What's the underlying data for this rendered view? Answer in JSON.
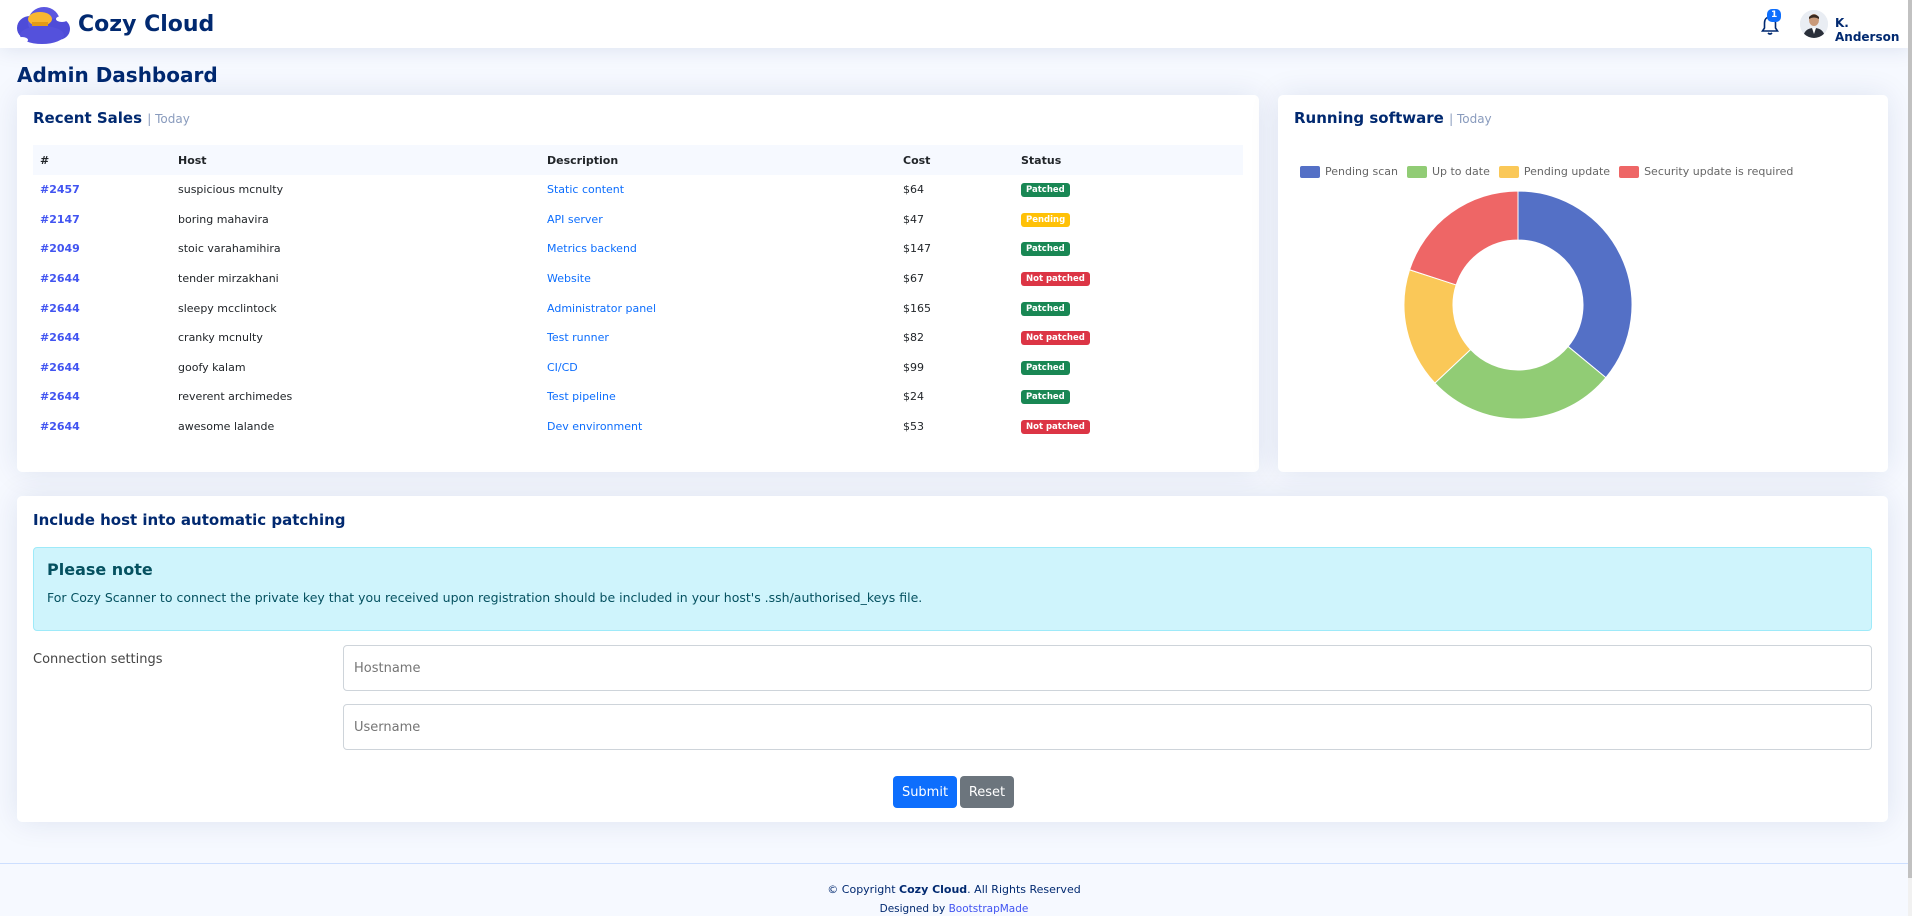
{
  "header": {
    "brand": "Cozy Cloud",
    "notification_count": "1",
    "user_name": "K. Anderson"
  },
  "page_title": "Admin Dashboard",
  "recent_sales": {
    "title": "Recent Sales",
    "subtitle": "| Today",
    "columns": [
      "#",
      "Host",
      "Description",
      "Cost",
      "Status"
    ],
    "rows": [
      {
        "id": "#2457",
        "host": "suspicious mcnulty",
        "description": "Static content",
        "cost": "$64",
        "status": "Patched",
        "status_color": "#198754"
      },
      {
        "id": "#2147",
        "host": "boring mahavira",
        "description": "API server",
        "cost": "$47",
        "status": "Pending",
        "status_color": "#ffc107"
      },
      {
        "id": "#2049",
        "host": "stoic varahamihira",
        "description": "Metrics backend",
        "cost": "$147",
        "status": "Patched",
        "status_color": "#198754"
      },
      {
        "id": "#2644",
        "host": "tender mirzakhani",
        "description": "Website",
        "cost": "$67",
        "status": "Not patched",
        "status_color": "#dc3545"
      },
      {
        "id": "#2644",
        "host": "sleepy mcclintock",
        "description": "Administrator panel",
        "cost": "$165",
        "status": "Patched",
        "status_color": "#198754"
      },
      {
        "id": "#2644",
        "host": "cranky mcnulty",
        "description": "Test runner",
        "cost": "$82",
        "status": "Not patched",
        "status_color": "#dc3545"
      },
      {
        "id": "#2644",
        "host": "goofy kalam",
        "description": "CI/CD",
        "cost": "$99",
        "status": "Patched",
        "status_color": "#198754"
      },
      {
        "id": "#2644",
        "host": "reverent archimedes",
        "description": "Test pipeline",
        "cost": "$24",
        "status": "Patched",
        "status_color": "#198754"
      },
      {
        "id": "#2644",
        "host": "awesome lalande",
        "description": "Dev environment",
        "cost": "$53",
        "status": "Not patched",
        "status_color": "#dc3545"
      }
    ]
  },
  "running_software": {
    "title": "Running software",
    "subtitle": "| Today"
  },
  "chart_data": {
    "type": "pie",
    "donut": true,
    "categories": [
      "Pending scan",
      "Up to date",
      "Pending update",
      "Security update is required"
    ],
    "values": [
      36,
      27,
      17,
      20
    ],
    "colors": [
      "#5470c6",
      "#91cc75",
      "#fac858",
      "#ee6666"
    ],
    "legend": "top"
  },
  "patching": {
    "title": "Include host into automatic patching",
    "note_heading": "Please note",
    "note_text": "For Cozy Scanner to connect the private key that you received upon registration should be included in your host's .ssh/authorised_keys file.",
    "connection_label": "Connection settings",
    "hostname_placeholder": "Hostname",
    "username_placeholder": "Username",
    "submit_label": "Submit",
    "reset_label": "Reset"
  },
  "footer": {
    "copyright_prefix": "© Copyright",
    "copyright_brand": "Cozy Cloud",
    "copyright_suffix": ". All Rights Reserved",
    "designed_by": "Designed by",
    "designer": "BootstrapMade"
  }
}
